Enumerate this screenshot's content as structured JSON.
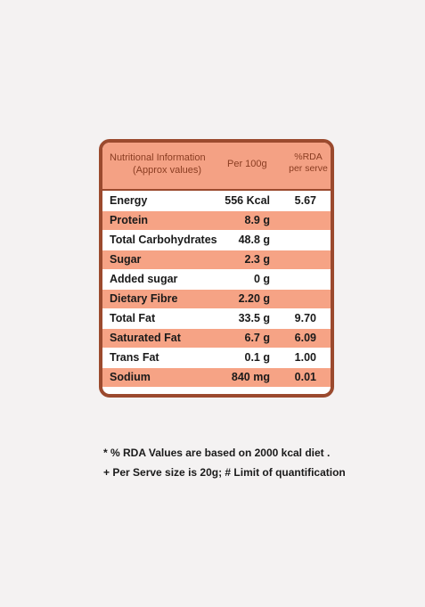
{
  "header": {
    "col1_line1": "Nutritional Information",
    "col1_line2": "(Approx values)",
    "col2": "Per 100g",
    "col3_line1": "%RDA",
    "col3_line2": "per serve"
  },
  "rows": [
    {
      "name": "Energy",
      "per100g": "556 Kcal",
      "rda": "5.67",
      "shaded": false
    },
    {
      "name": "Protein",
      "per100g": "8.9 g",
      "rda": "",
      "shaded": true
    },
    {
      "name": "Total Carbohydrates",
      "per100g": "48.8 g",
      "rda": "",
      "shaded": false
    },
    {
      "name": "Sugar",
      "per100g": "2.3 g",
      "rda": "",
      "shaded": true
    },
    {
      "name": "Added sugar",
      "per100g": "0 g",
      "rda": "",
      "shaded": false
    },
    {
      "name": "Dietary Fibre",
      "per100g": "2.20 g",
      "rda": "",
      "shaded": true
    },
    {
      "name": "Total Fat",
      "per100g": "33.5 g",
      "rda": "9.70",
      "shaded": false
    },
    {
      "name": "Saturated Fat",
      "per100g": "6.7 g",
      "rda": "6.09",
      "shaded": true
    },
    {
      "name": "Trans Fat",
      "per100g": "0.1 g",
      "rda": "1.00",
      "shaded": false
    },
    {
      "name": "Sodium",
      "per100g": "840 mg",
      "rda": "0.01",
      "shaded": true
    }
  ],
  "footnotes": {
    "line1": "* % RDA Values are based on 2000 kcal diet .",
    "line2": "+ Per Serve size is 20g; # Limit of quantification"
  },
  "colors": {
    "border": "#9b4a2e",
    "shade": "#f6a385",
    "header_bg": "#f4a184"
  }
}
